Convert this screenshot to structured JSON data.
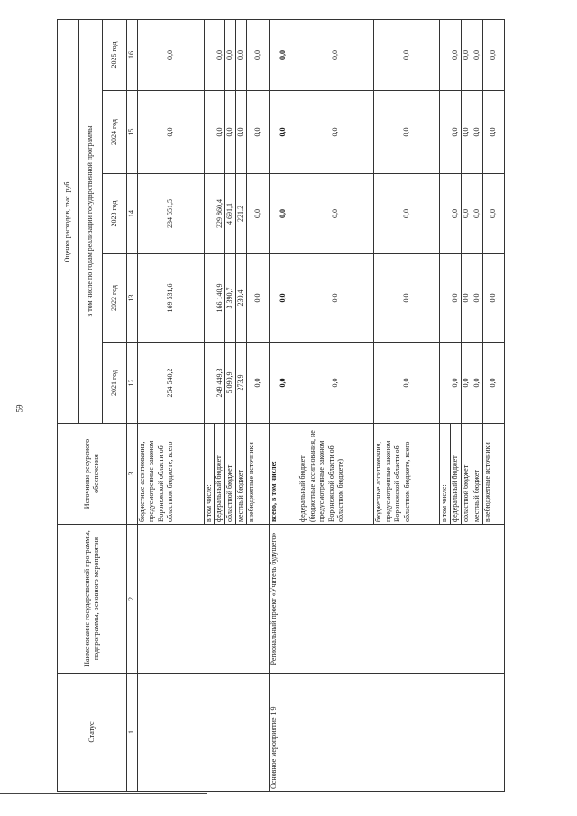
{
  "page_number": "59",
  "header": {
    "status": "Статус",
    "name": "Наименование государственной программы, подпрограммы, основного мероприятия",
    "sources": "Источники ресурсного обеспечения",
    "estimate": "Оценка расходов, тыс. руб.",
    "by_years": "в том числе по годам реализации государственной программы",
    "years": [
      "2021 год",
      "2022 год",
      "2023 год",
      "2024 год",
      "2025 год"
    ],
    "col_numbers": [
      "1",
      "2",
      "3",
      "12",
      "13",
      "14",
      "15",
      "16"
    ]
  },
  "blocks": [
    {
      "status": "",
      "name": "",
      "rows": [
        {
          "source": "бюджетные ассигнования, предусмотренные законом Воронежской области об областном бюджете, всего",
          "values": [
            "254 540,2",
            "169 531,6",
            "234 551,5",
            "0,0",
            "0,0"
          ]
        },
        {
          "source": "в том числе:",
          "values": null
        },
        {
          "source": "федеральный бюджет",
          "values": [
            "249 449,3",
            "166 140,9",
            "229 860,4",
            "0,0",
            "0,0"
          ]
        },
        {
          "source": "областной бюджет",
          "values": [
            "5 090,9",
            "3 390,7",
            "4 691,1",
            "0,0",
            "0,0"
          ]
        },
        {
          "source": "местный бюджет",
          "values": [
            "273,9",
            "230,4",
            "221,2",
            "0,0",
            "0,0"
          ]
        },
        {
          "source": "внебюджетные источники",
          "values": [
            "0,0",
            "0,0",
            "0,0",
            "0,0",
            "0,0"
          ]
        }
      ]
    },
    {
      "status": "Основное мероприятие 1.9",
      "name": "Региональный проект «Учитель будущего»",
      "rows": [
        {
          "source": "всего, в том числе:",
          "bold": true,
          "values": [
            "0,0",
            "0,0",
            "0,0",
            "0,0",
            "0,0"
          ]
        },
        {
          "source": "федеральный бюджет (бюджетные ассигнования, не предусмотренные законом Воронежской области об областном бюджете)",
          "values": [
            "0,0",
            "0,0",
            "0,0",
            "0,0",
            "0,0"
          ]
        },
        {
          "source": "бюджетные ассигнования, предусмотренные законом Воронежской области об областном бюджете, всего",
          "values": [
            "0,0",
            "0,0",
            "0,0",
            "0,0",
            "0,0"
          ]
        },
        {
          "source": "в том числе:",
          "values": null
        },
        {
          "source": "федеральный бюджет",
          "values": [
            "0,0",
            "0,0",
            "0,0",
            "0,0",
            "0,0"
          ]
        },
        {
          "source": "областной бюджет",
          "values": [
            "0,0",
            "0,0",
            "0,0",
            "0,0",
            "0,0"
          ]
        },
        {
          "source": "местный бюджет",
          "values": [
            "0,0",
            "0,0",
            "0,0",
            "0,0",
            "0,0"
          ]
        },
        {
          "source": "внебюджетные источники",
          "values": [
            "0,0",
            "0,0",
            "0,0",
            "0,0",
            "0,0"
          ]
        }
      ]
    }
  ]
}
